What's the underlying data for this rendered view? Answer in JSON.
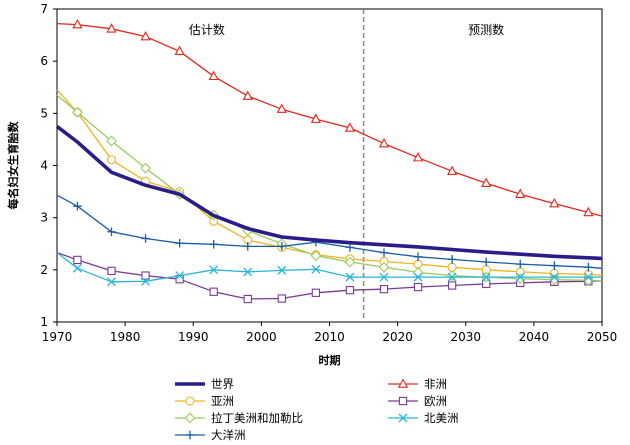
{
  "chart_data": {
    "type": "line",
    "title": "",
    "xlabel": "时期",
    "ylabel": "每名妇女生育胎数",
    "xlim": [
      1970,
      2050
    ],
    "ylim": [
      1,
      7
    ],
    "xticks": [
      1970,
      1980,
      1990,
      2000,
      2010,
      2020,
      2030,
      2040,
      2050
    ],
    "yticks": [
      1,
      2,
      3,
      4,
      5,
      6,
      7
    ],
    "divider_x": 2015,
    "regions": [
      {
        "label": "估计数",
        "x": 1992
      },
      {
        "label": "预测数",
        "x": 2033
      }
    ],
    "legend": {
      "placement": "bottom"
    },
    "series": [
      {
        "name": "世界",
        "color": "#2a1d8a",
        "marker": "none",
        "bold": true,
        "x": [
          1970,
          1973,
          1978,
          1983,
          1988,
          1993,
          1998,
          2003,
          2008,
          2013,
          2018,
          2023,
          2028,
          2033,
          2038,
          2043,
          2048,
          2050
        ],
        "y": [
          4.75,
          4.45,
          3.87,
          3.62,
          3.45,
          3.04,
          2.79,
          2.63,
          2.57,
          2.52,
          2.48,
          2.44,
          2.39,
          2.34,
          2.3,
          2.26,
          2.23,
          2.22
        ]
      },
      {
        "name": "非洲",
        "color": "#e0281e",
        "marker": "triangle",
        "x": [
          1970,
          1973,
          1978,
          1983,
          1988,
          1993,
          1998,
          2003,
          2008,
          2013,
          2018,
          2023,
          2028,
          2033,
          2038,
          2043,
          2048,
          2050
        ],
        "y": [
          6.72,
          6.7,
          6.62,
          6.47,
          6.19,
          5.71,
          5.33,
          5.08,
          4.89,
          4.72,
          4.42,
          4.15,
          3.89,
          3.66,
          3.45,
          3.27,
          3.1,
          3.03
        ]
      },
      {
        "name": "亚洲",
        "color": "#f0b41e",
        "marker": "circle",
        "x": [
          1970,
          1973,
          1978,
          1983,
          1988,
          1993,
          1998,
          2003,
          2008,
          2013,
          2018,
          2023,
          2028,
          2033,
          2038,
          2043,
          2048,
          2050
        ],
        "y": [
          5.45,
          5.02,
          4.11,
          3.7,
          3.5,
          2.93,
          2.57,
          2.43,
          2.29,
          2.21,
          2.16,
          2.11,
          2.05,
          2.0,
          1.96,
          1.93,
          1.91,
          1.9
        ]
      },
      {
        "name": "欧洲",
        "color": "#7a3a96",
        "marker": "square",
        "x": [
          1970,
          1973,
          1978,
          1983,
          1988,
          1993,
          1998,
          2003,
          2008,
          2013,
          2018,
          2023,
          2028,
          2033,
          2038,
          2043,
          2048,
          2050
        ],
        "y": [
          2.33,
          2.19,
          1.98,
          1.89,
          1.82,
          1.58,
          1.44,
          1.45,
          1.56,
          1.61,
          1.63,
          1.67,
          1.7,
          1.73,
          1.75,
          1.77,
          1.78,
          1.79
        ]
      },
      {
        "name": "拉丁美洲和加勒比",
        "color": "#98cc5e",
        "marker": "diamond",
        "x": [
          1970,
          1973,
          1978,
          1983,
          1988,
          1993,
          1998,
          2003,
          2008,
          2013,
          2018,
          2023,
          2028,
          2033,
          2038,
          2043,
          2048,
          2050
        ],
        "y": [
          5.35,
          5.02,
          4.47,
          3.95,
          3.45,
          3.05,
          2.75,
          2.5,
          2.27,
          2.15,
          2.05,
          1.95,
          1.89,
          1.86,
          1.83,
          1.81,
          1.8,
          1.79
        ]
      },
      {
        "name": "北美洲",
        "color": "#2ab4d8",
        "marker": "x",
        "x": [
          1970,
          1973,
          1978,
          1983,
          1988,
          1993,
          1998,
          2003,
          2008,
          2013,
          2018,
          2023,
          2028,
          2033,
          2038,
          2043,
          2048,
          2050
        ],
        "y": [
          2.33,
          2.03,
          1.77,
          1.78,
          1.89,
          2.0,
          1.96,
          1.99,
          2.01,
          1.86,
          1.86,
          1.86,
          1.86,
          1.86,
          1.86,
          1.86,
          1.86,
          1.86
        ]
      },
      {
        "name": "大洋洲",
        "color": "#1a5ea8",
        "marker": "plus",
        "x": [
          1970,
          1973,
          1978,
          1983,
          1988,
          1993,
          1998,
          2003,
          2008,
          2013,
          2018,
          2023,
          2028,
          2033,
          2038,
          2043,
          2048,
          2050
        ],
        "y": [
          3.43,
          3.22,
          2.73,
          2.6,
          2.51,
          2.49,
          2.45,
          2.45,
          2.53,
          2.43,
          2.33,
          2.25,
          2.2,
          2.15,
          2.11,
          2.08,
          2.05,
          2.03
        ]
      }
    ]
  }
}
